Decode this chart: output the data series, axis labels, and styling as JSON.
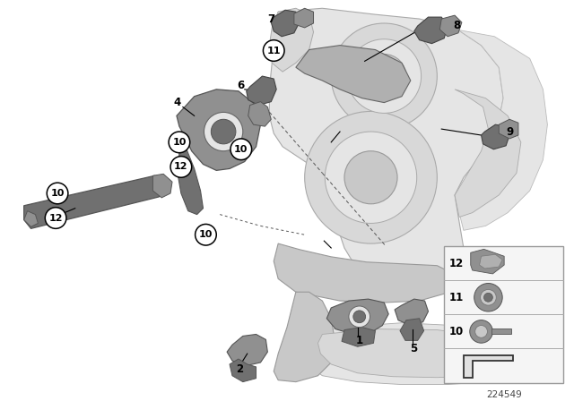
{
  "bg_color": "#ffffff",
  "fig_width": 6.4,
  "fig_height": 4.48,
  "dpi": 100,
  "diagram_id": "224549",
  "body_color_dark": "#b0b0b0",
  "body_color_mid": "#c8c8c8",
  "body_color_light": "#d8d8d8",
  "body_color_vlight": "#e5e5e5",
  "part_color_dark": "#707070",
  "part_color_mid": "#909090",
  "part_color_light": "#b0b0b0",
  "line_color": "#000000",
  "circle_bg": "#ffffff",
  "circle_edge": "#000000",
  "legend_bg": "#f5f5f5",
  "legend_border": "#999999"
}
